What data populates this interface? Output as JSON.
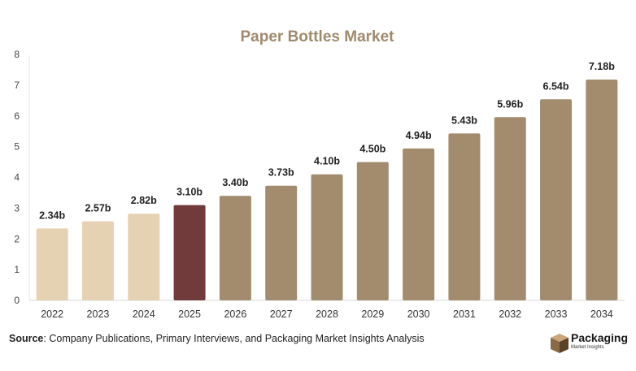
{
  "chart_data": {
    "type": "bar",
    "title": "Paper Bottles Market",
    "categories": [
      "2022",
      "2023",
      "2024",
      "2025",
      "2026",
      "2027",
      "2028",
      "2029",
      "2030",
      "2031",
      "2032",
      "2033",
      "2034"
    ],
    "values": [
      2.34,
      2.57,
      2.82,
      3.1,
      3.4,
      3.73,
      4.1,
      4.5,
      4.94,
      5.43,
      5.96,
      6.54,
      7.18
    ],
    "data_labels": [
      "2.34b",
      "2.57b",
      "2.82b",
      "3.10b",
      "3.40b",
      "3.73b",
      "4.10b",
      "4.50b",
      "4.94b",
      "5.43b",
      "5.96b",
      "6.54b",
      "7.18b"
    ],
    "yticks": [
      "0",
      "1",
      "2",
      "3",
      "4",
      "5",
      "6",
      "7",
      "8"
    ],
    "ylim": [
      0,
      8
    ],
    "grid": false,
    "colors": {
      "historical": "#e5d2b2",
      "current": "#713b3c",
      "forecast": "#a38c6d",
      "title": "#a08a6c"
    },
    "bar_groups": [
      "historical",
      "historical",
      "historical",
      "current",
      "forecast",
      "forecast",
      "forecast",
      "forecast",
      "forecast",
      "forecast",
      "forecast",
      "forecast",
      "forecast"
    ]
  },
  "footer": {
    "source_label": "Source",
    "source_text": ": Company Publications, Primary Interviews, and Packaging Market Insights Analysis"
  },
  "logo": {
    "name": "Packaging",
    "sub": "Market Insights",
    "icon": "box-icon"
  }
}
